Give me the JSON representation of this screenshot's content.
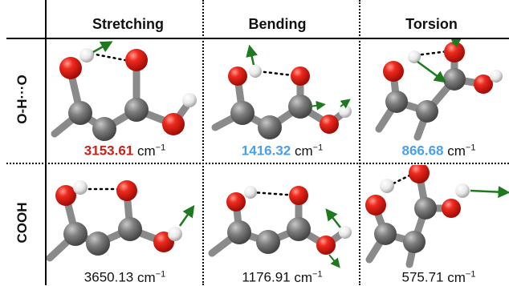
{
  "columns": [
    "Stretching",
    "Bending",
    "Torsion"
  ],
  "rows": [
    "O-H···O",
    "COOH"
  ],
  "cells": [
    [
      {
        "value": "3153.61",
        "unit": "cm",
        "exp": "−1",
        "color": "#c0261c",
        "bold": true
      },
      {
        "value": "1416.32",
        "unit": "cm",
        "exp": "−1",
        "color": "#4a9fe8",
        "bold": true
      },
      {
        "value": "866.68",
        "unit": "cm",
        "exp": "−1",
        "color": "#4a9fe8",
        "bold": true
      }
    ],
    [
      {
        "value": "3650.13",
        "unit": "cm",
        "exp": "−1",
        "color": "#111111",
        "bold": false
      },
      {
        "value": "1176.91",
        "unit": "cm",
        "exp": "−1",
        "color": "#111111",
        "bold": false
      },
      {
        "value": "575.71",
        "unit": "cm",
        "exp": "−1",
        "color": "#111111",
        "bold": false
      }
    ]
  ],
  "colors": {
    "oxygen": "#e0140e",
    "hydrogen": "#f2f2f2",
    "carbon": "#7a7a7a",
    "bond": "#8a8a8a",
    "arrow": "#1f7a1f"
  }
}
